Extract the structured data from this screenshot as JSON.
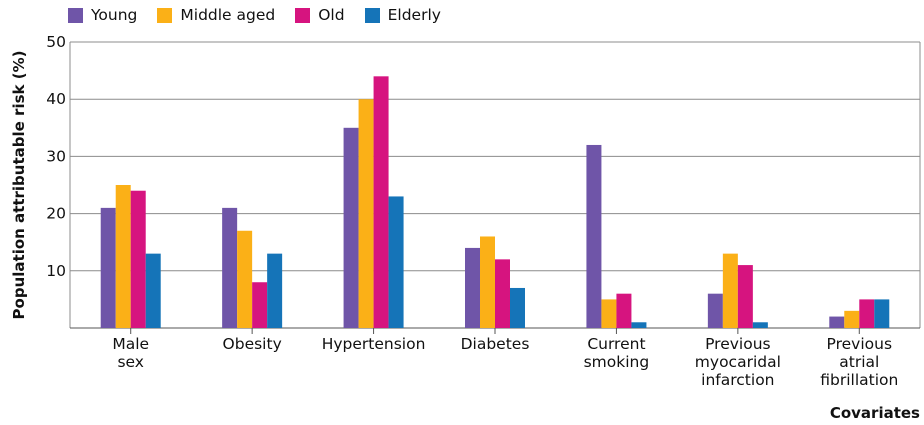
{
  "chart_data": {
    "type": "bar",
    "categories": [
      [
        "Male",
        "sex"
      ],
      [
        "Obesity"
      ],
      [
        "Hypertension"
      ],
      [
        "Diabetes"
      ],
      [
        "Current",
        "smoking"
      ],
      [
        "Previous",
        "myocaridal",
        "infarction"
      ],
      [
        "Previous",
        "atrial",
        "fibrillation"
      ]
    ],
    "series": [
      {
        "name": "Young",
        "color": "#6f55a8",
        "values": [
          21,
          21,
          35,
          14,
          32,
          6,
          2
        ]
      },
      {
        "name": "Middle aged",
        "color": "#fbb017",
        "values": [
          25,
          17,
          40,
          16,
          5,
          13,
          3
        ]
      },
      {
        "name": "Old",
        "color": "#d6147f",
        "values": [
          24,
          8,
          44,
          12,
          6,
          11,
          5
        ]
      },
      {
        "name": "Elderly",
        "color": "#1574b8",
        "values": [
          13,
          13,
          23,
          7,
          1,
          1,
          5
        ]
      }
    ],
    "ylim": [
      0,
      50
    ],
    "yticks": [
      10,
      20,
      30,
      40,
      50
    ],
    "xlabel": "Covariates",
    "ylabel": "Population attributable risk (%)",
    "grid": true,
    "legend": "top-left"
  }
}
